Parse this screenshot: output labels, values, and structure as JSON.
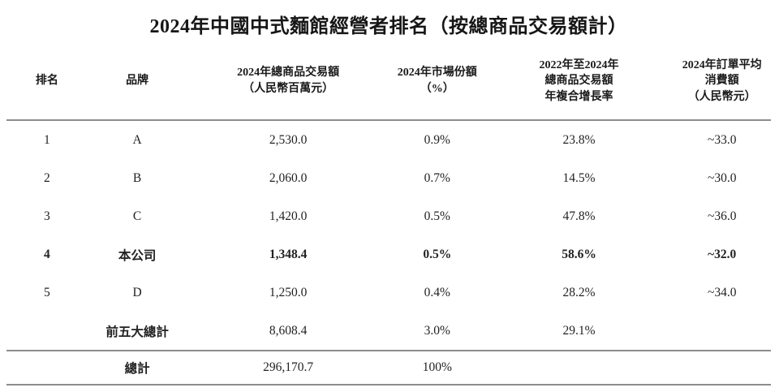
{
  "page_title": "2024年中國中式麵館經營者排名（按總商品交易額計）",
  "table": {
    "columns": [
      {
        "key": "rank",
        "label_lines": [
          "排名"
        ]
      },
      {
        "key": "brand",
        "label_lines": [
          "品牌"
        ]
      },
      {
        "key": "gmv",
        "label_lines": [
          "2024年總商品交易額",
          "（人民幣百萬元）"
        ]
      },
      {
        "key": "market-share",
        "label_lines": [
          "2024年市場份額",
          "（%）"
        ]
      },
      {
        "key": "cagr",
        "label_lines": [
          "2022年至2024年",
          "總商品交易額",
          "年複合增長率"
        ]
      },
      {
        "key": "avg-spend",
        "label_lines": [
          "2024年訂單平均",
          "消費額",
          "（人民幣元）"
        ]
      }
    ],
    "rows": [
      {
        "name": "row-rank-1",
        "cells": [
          "1",
          "A",
          "2,530.0",
          "0.9%",
          "23.8%",
          "~33.0"
        ]
      },
      {
        "name": "row-rank-2",
        "cells": [
          "2",
          "B",
          "2,060.0",
          "0.7%",
          "14.5%",
          "~30.0"
        ]
      },
      {
        "name": "row-rank-3",
        "cells": [
          "3",
          "C",
          "1,420.0",
          "0.5%",
          "47.8%",
          "~36.0"
        ]
      },
      {
        "name": "row-rank-4-our-company",
        "bold": true,
        "cells": [
          "4",
          "本公司",
          "1,348.4",
          "0.5%",
          "58.6%",
          "~32.0"
        ]
      },
      {
        "name": "row-rank-5",
        "cells": [
          "5",
          "D",
          "1,250.0",
          "0.4%",
          "28.2%",
          "~34.0"
        ]
      },
      {
        "name": "row-top-five-subtotal",
        "bold_indices": [
          1
        ],
        "cells": [
          "",
          "前五大總計",
          "8,608.4",
          "3.0%",
          "29.1%",
          ""
        ]
      },
      {
        "name": "row-grand-total",
        "bold_indices": [
          1
        ],
        "separator_above": true,
        "cells": [
          "",
          "總計",
          "296,170.7",
          "100%",
          "",
          ""
        ]
      }
    ]
  }
}
